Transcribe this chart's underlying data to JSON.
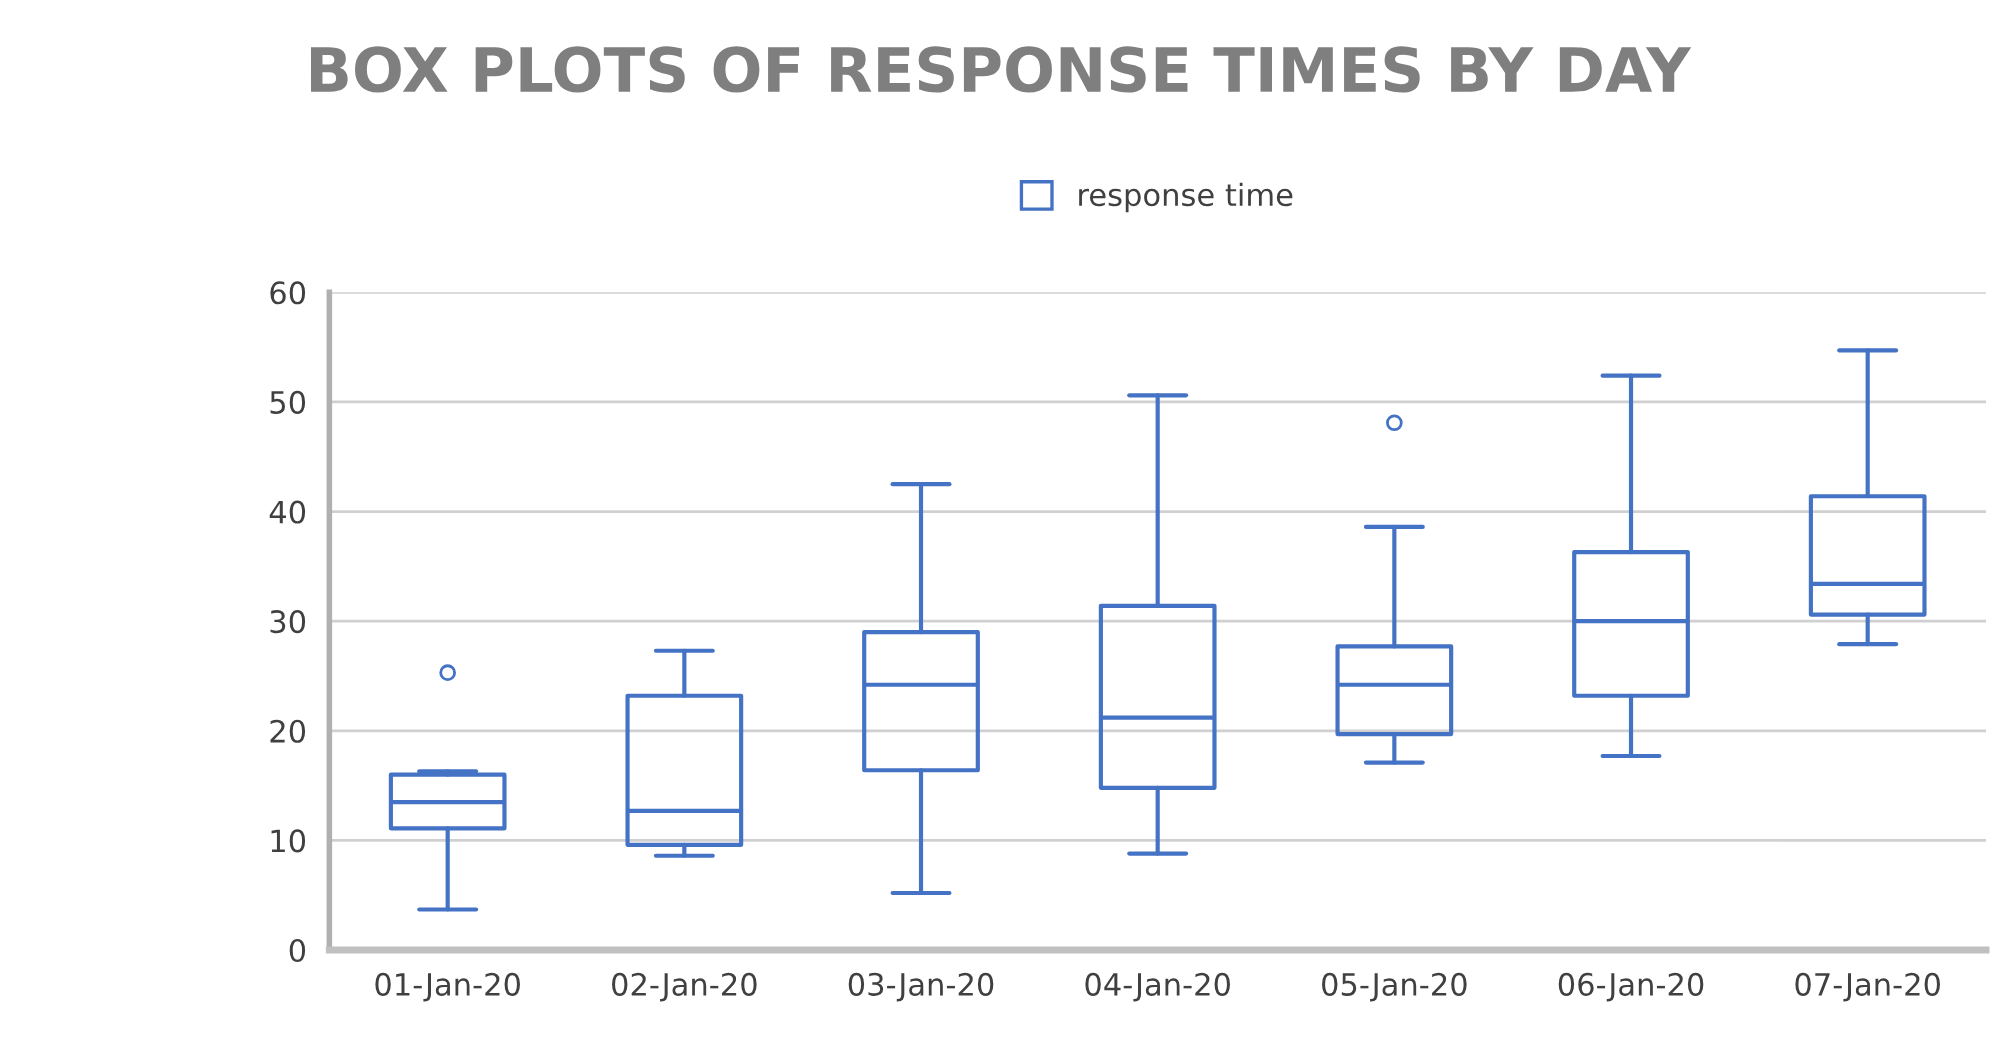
{
  "chart_data": {
    "type": "box",
    "title": "BOX PLOTS OF RESPONSE TIMES BY DAY",
    "categories": [
      "01-Jan-20",
      "02-Jan-20",
      "03-Jan-20",
      "04-Jan-20",
      "05-Jan-20",
      "06-Jan-20",
      "07-Jan-20"
    ],
    "series": [
      {
        "name": "response time",
        "color": "#4472c4",
        "boxes": [
          {
            "low": 3.7,
            "q1": 11.1,
            "median": 13.5,
            "q3": 16.0,
            "high": 16.3,
            "outliers": [
              25.3
            ]
          },
          {
            "low": 8.6,
            "q1": 9.6,
            "median": 12.7,
            "q3": 23.2,
            "high": 27.3
          },
          {
            "low": 5.2,
            "q1": 16.4,
            "median": 24.2,
            "q3": 29.0,
            "high": 42.5
          },
          {
            "low": 8.8,
            "q1": 14.8,
            "median": 21.2,
            "q3": 31.4,
            "high": 50.6
          },
          {
            "low": 17.1,
            "q1": 19.7,
            "median": 24.2,
            "q3": 27.7,
            "high": 38.6,
            "outliers": [
              48.1
            ]
          },
          {
            "low": 17.7,
            "q1": 23.2,
            "median": 30.0,
            "q3": 36.3,
            "high": 52.4
          },
          {
            "low": 27.9,
            "q1": 30.6,
            "median": 33.4,
            "q3": 41.4,
            "high": 54.7
          }
        ]
      }
    ],
    "ylim": [
      0,
      60
    ],
    "yticks": [
      0,
      10,
      20,
      30,
      40,
      50,
      60
    ],
    "grid": "y",
    "legend": "top"
  }
}
